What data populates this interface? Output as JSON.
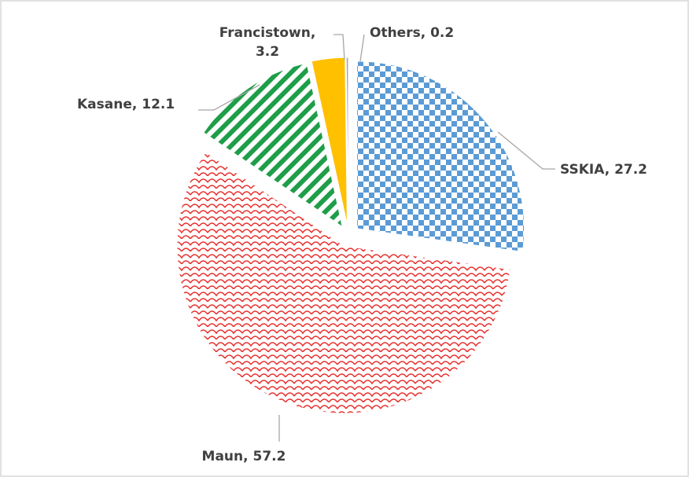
{
  "chart_data": {
    "type": "pie",
    "values": [
      27.2,
      57.2,
      12.1,
      3.2,
      0.2
    ],
    "value_labels": [
      "SSKIA, 27.2",
      "Maun, 57.2",
      "Kasane, 12.1",
      "Francistown, 3.2",
      "Others, 0.2"
    ],
    "colors": [
      "#5b9bd5",
      "#e8312f",
      "#1f9e49",
      "#ffc000",
      "#a5a5a5"
    ]
  }
}
